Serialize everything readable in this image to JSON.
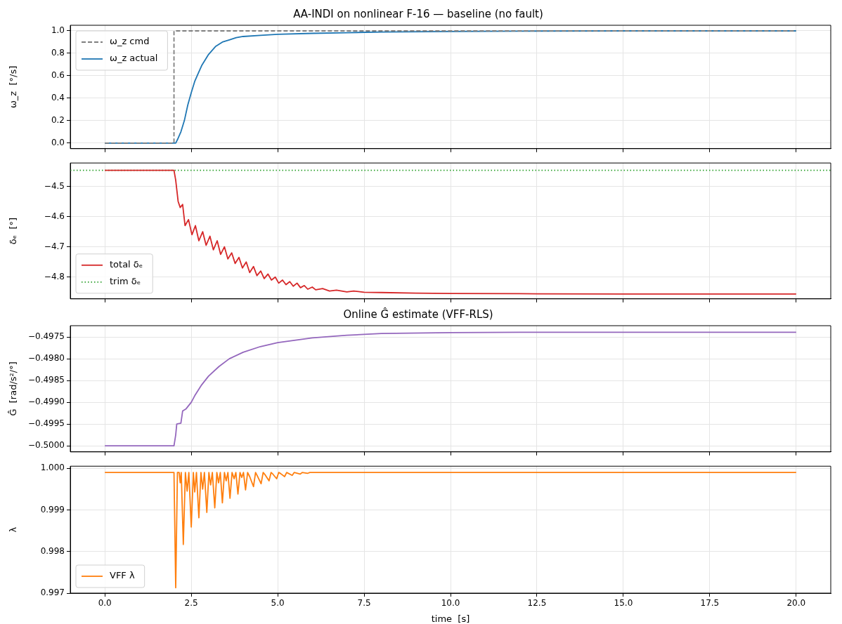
{
  "chart_data": [
    {
      "type": "line",
      "title": "AA-INDI on nonlinear F-16 — baseline (no fault)",
      "ylabel": "ω_z  [°/s]",
      "xlim": [
        -1,
        21
      ],
      "ylim": [
        -0.05,
        1.05
      ],
      "xticks": [
        {
          "value": 0,
          "label": null
        },
        {
          "value": 2.5,
          "label": null
        },
        {
          "value": 5,
          "label": null
        },
        {
          "value": 7.5,
          "label": null
        },
        {
          "value": 10,
          "label": null
        },
        {
          "value": 12.5,
          "label": null
        },
        {
          "value": 15,
          "label": null
        },
        {
          "value": 17.5,
          "label": null
        },
        {
          "value": 20,
          "label": null
        }
      ],
      "yticks": [
        {
          "value": 0,
          "label": "0.0"
        },
        {
          "value": 0.2,
          "label": "0.2"
        },
        {
          "value": 0.4,
          "label": "0.4"
        },
        {
          "value": 0.6,
          "label": "0.6"
        },
        {
          "value": 0.8,
          "label": "0.8"
        },
        {
          "value": 1,
          "label": "1.0"
        }
      ],
      "tick_labels": "y",
      "grid": true,
      "legend": "top left",
      "series": [
        {
          "name": "ω_z cmd",
          "color": "#7f7f7f",
          "line_style": "dashed",
          "x": [
            0,
            2,
            2,
            20
          ],
          "values": [
            0,
            0,
            1,
            1
          ]
        },
        {
          "name": "ω_z actual",
          "color": "#1f77b4",
          "line_style": "solid",
          "x": [
            0,
            2.05,
            2.1,
            2.2,
            2.3,
            2.4,
            2.5,
            2.6,
            2.7,
            2.8,
            2.9,
            3.0,
            3.2,
            3.4,
            3.6,
            3.8,
            4.0,
            4.5,
            5,
            6,
            7,
            8,
            10,
            12,
            15,
            20
          ],
          "values": [
            0,
            0,
            0.03,
            0.1,
            0.2,
            0.34,
            0.45,
            0.55,
            0.62,
            0.69,
            0.74,
            0.79,
            0.86,
            0.9,
            0.92,
            0.94,
            0.95,
            0.96,
            0.97,
            0.978,
            0.984,
            0.99,
            0.995,
            0.998,
            1,
            1
          ]
        }
      ]
    },
    {
      "type": "line",
      "ylabel": "δₑ  [°]",
      "xlim": [
        -1,
        21
      ],
      "ylim": [
        -4.872,
        -4.423
      ],
      "xticks": [
        {
          "value": 0,
          "label": null
        },
        {
          "value": 2.5,
          "label": null
        },
        {
          "value": 5,
          "label": null
        },
        {
          "value": 7.5,
          "label": null
        },
        {
          "value": 10,
          "label": null
        },
        {
          "value": 12.5,
          "label": null
        },
        {
          "value": 15,
          "label": null
        },
        {
          "value": 17.5,
          "label": null
        },
        {
          "value": 20,
          "label": null
        }
      ],
      "yticks": [
        {
          "value": -4.8,
          "label": "−4.8"
        },
        {
          "value": -4.7,
          "label": "−4.7"
        },
        {
          "value": -4.6,
          "label": "−4.6"
        },
        {
          "value": -4.5,
          "label": "−4.5"
        }
      ],
      "tick_labels": "y",
      "grid": true,
      "legend": "bottom left",
      "series": [
        {
          "name": "total δₑ",
          "color": "#d62728",
          "line_style": "solid",
          "x": [
            0,
            2.0,
            2.05,
            2.12,
            2.18,
            2.25,
            2.32,
            2.42,
            2.52,
            2.62,
            2.72,
            2.83,
            2.93,
            3.04,
            3.14,
            3.25,
            3.35,
            3.46,
            3.56,
            3.67,
            3.77,
            3.88,
            3.98,
            4.09,
            4.19,
            4.3,
            4.4,
            4.51,
            4.61,
            4.72,
            4.82,
            4.93,
            5.03,
            5.14,
            5.24,
            5.35,
            5.45,
            5.56,
            5.66,
            5.77,
            5.87,
            6.0,
            6.1,
            6.3,
            6.5,
            6.7,
            7.0,
            7.2,
            7.5,
            8,
            9,
            10,
            12,
            15,
            20
          ],
          "values": [
            -4.447,
            -4.447,
            -4.48,
            -4.55,
            -4.57,
            -4.56,
            -4.63,
            -4.61,
            -4.66,
            -4.63,
            -4.68,
            -4.65,
            -4.695,
            -4.665,
            -4.71,
            -4.68,
            -4.725,
            -4.7,
            -4.74,
            -4.72,
            -4.755,
            -4.735,
            -4.77,
            -4.75,
            -4.785,
            -4.765,
            -4.795,
            -4.78,
            -4.805,
            -4.79,
            -4.81,
            -4.8,
            -4.82,
            -4.81,
            -4.825,
            -4.815,
            -4.83,
            -4.82,
            -4.835,
            -4.828,
            -4.84,
            -4.833,
            -4.842,
            -4.838,
            -4.846,
            -4.843,
            -4.849,
            -4.846,
            -4.85,
            -4.851,
            -4.853,
            -4.854,
            -4.855,
            -4.856,
            -4.856
          ]
        },
        {
          "name": "trim δₑ",
          "color": "#2ca02c",
          "line_style": "dotted",
          "x": [
            -1,
            21
          ],
          "values": [
            -4.447,
            -4.447
          ]
        }
      ]
    },
    {
      "type": "line",
      "title": "Online Ĝ estimate (VFF-RLS)",
      "ylabel": "Ĝ  [rad/s²/°]",
      "xlim": [
        -1,
        21
      ],
      "ylim": [
        -0.50014,
        -0.49724
      ],
      "xticks": [
        {
          "value": 0,
          "label": null
        },
        {
          "value": 2.5,
          "label": null
        },
        {
          "value": 5,
          "label": null
        },
        {
          "value": 7.5,
          "label": null
        },
        {
          "value": 10,
          "label": null
        },
        {
          "value": 12.5,
          "label": null
        },
        {
          "value": 15,
          "label": null
        },
        {
          "value": 17.5,
          "label": null
        },
        {
          "value": 20,
          "label": null
        }
      ],
      "yticks": [
        {
          "value": -0.5,
          "label": "−0.5000"
        },
        {
          "value": -0.4995,
          "label": "−0.4995"
        },
        {
          "value": -0.499,
          "label": "−0.4990"
        },
        {
          "value": -0.4985,
          "label": "−0.4985"
        },
        {
          "value": -0.498,
          "label": "−0.4980"
        },
        {
          "value": -0.4975,
          "label": "−0.4975"
        }
      ],
      "tick_labels": "y",
      "grid": true,
      "series": [
        {
          "color": "#9467bd",
          "line_style": "solid",
          "x": [
            0,
            2.0,
            2.05,
            2.08,
            2.2,
            2.25,
            2.35,
            2.5,
            2.6,
            2.8,
            3.0,
            3.3,
            3.6,
            4.0,
            4.5,
            5.0,
            6.0,
            7.0,
            8.0,
            10,
            12,
            15,
            20
          ],
          "values": [
            -0.5,
            -0.5,
            -0.49975,
            -0.4995,
            -0.49948,
            -0.4992,
            -0.49915,
            -0.499,
            -0.49885,
            -0.4986,
            -0.4984,
            -0.49818,
            -0.498,
            -0.49785,
            -0.49772,
            -0.49763,
            -0.49752,
            -0.49746,
            -0.49742,
            -0.4974,
            -0.49739,
            -0.49739,
            -0.49739
          ]
        }
      ]
    },
    {
      "type": "line",
      "xlabel": "time  [s]",
      "ylabel": "λ",
      "xlim": [
        -1,
        21
      ],
      "ylim": [
        0.997,
        1.00005
      ],
      "xticks": [
        {
          "value": 0,
          "label": "0.0"
        },
        {
          "value": 2.5,
          "label": "2.5"
        },
        {
          "value": 5,
          "label": "5.0"
        },
        {
          "value": 7.5,
          "label": "7.5"
        },
        {
          "value": 10,
          "label": "10.0"
        },
        {
          "value": 12.5,
          "label": "12.5"
        },
        {
          "value": 15,
          "label": "15.0"
        },
        {
          "value": 17.5,
          "label": "17.5"
        },
        {
          "value": 20,
          "label": "20.0"
        }
      ],
      "yticks": [
        {
          "value": 0.997,
          "label": "0.997"
        },
        {
          "value": 0.998,
          "label": "0.998"
        },
        {
          "value": 0.999,
          "label": "0.999"
        },
        {
          "value": 1,
          "label": "1.000"
        }
      ],
      "grid": true,
      "legend": "bottom left",
      "series": [
        {
          "name": "VFF λ",
          "color": "#ff7f0e",
          "line_style": "solid",
          "x": [
            0,
            2.0,
            2.05,
            2.1,
            2.15,
            2.18,
            2.21,
            2.27,
            2.33,
            2.38,
            2.43,
            2.5,
            2.56,
            2.6,
            2.65,
            2.72,
            2.78,
            2.83,
            2.88,
            2.95,
            3.01,
            3.06,
            3.11,
            3.18,
            3.24,
            3.29,
            3.34,
            3.4,
            3.46,
            3.51,
            3.56,
            3.62,
            3.68,
            3.74,
            3.79,
            3.85,
            3.91,
            3.96,
            4.01,
            4.07,
            4.13,
            4.19,
            4.3,
            4.36,
            4.41,
            4.52,
            4.58,
            4.64,
            4.75,
            4.81,
            4.86,
            4.97,
            5.03,
            5.09,
            5.2,
            5.26,
            5.42,
            5.48,
            5.65,
            5.71,
            5.87,
            5.93,
            20
          ],
          "values": [
            0.9999,
            0.9999,
            0.99713,
            0.9999,
            0.9999,
            0.99965,
            0.9999,
            0.99817,
            0.9999,
            0.99945,
            0.9999,
            0.99859,
            0.9999,
            0.99943,
            0.9999,
            0.99881,
            0.9999,
            0.9995,
            0.9999,
            0.99894,
            0.9999,
            0.9996,
            0.9999,
            0.99905,
            0.9999,
            0.99965,
            0.9999,
            0.99917,
            0.9999,
            0.9997,
            0.9999,
            0.99928,
            0.9999,
            0.99975,
            0.9999,
            0.99938,
            0.9999,
            0.99978,
            0.9999,
            0.99948,
            0.9999,
            0.9998,
            0.99956,
            0.9999,
            0.99982,
            0.99963,
            0.9999,
            0.99984,
            0.9997,
            0.9999,
            0.99986,
            0.99975,
            0.9999,
            0.99987,
            0.9998,
            0.9999,
            0.99983,
            0.9999,
            0.99986,
            0.9999,
            0.99988,
            0.9999,
            0.9999
          ]
        }
      ]
    }
  ]
}
